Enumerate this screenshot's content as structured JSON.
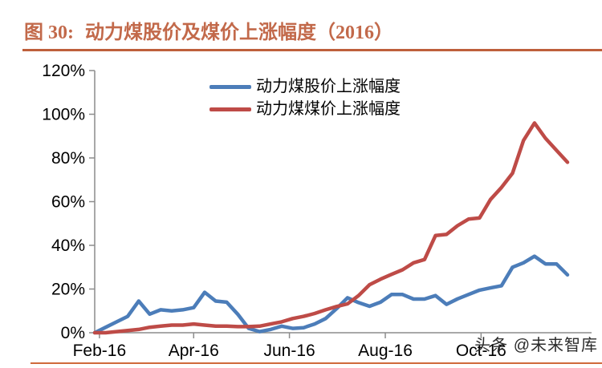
{
  "figure": {
    "label": "图 30:",
    "title": "动力煤股价及煤价上涨幅度（2016）"
  },
  "watermark": {
    "text": "头条 @未来智库"
  },
  "colors": {
    "title": "#C2694A",
    "title_rule": "#BE5F3B",
    "bottom_rule": "#D06A3C",
    "stock_line": "#4C7DB9",
    "coal_line": "#BE4B47",
    "axis": "#8C8C8C",
    "text": "#000000",
    "watermark": "#2B2B2B"
  },
  "chart_data": {
    "type": "line",
    "title": "动力煤股价及煤价上涨幅度（2016）",
    "unit": "percent",
    "grid": false,
    "legend_position": "top-center",
    "ylim": [
      0,
      120
    ],
    "ytick_labels": [
      "0%",
      "20%",
      "40%",
      "60%",
      "80%",
      "100%",
      "120%"
    ],
    "ytick_values": [
      0,
      20,
      40,
      60,
      80,
      100,
      120
    ],
    "xtick_labels": [
      "Feb-16",
      "Apr-16",
      "Jun-16",
      "Aug-16",
      "Oct-16"
    ],
    "x": [
      "Jan-29",
      "Feb-05",
      "Feb-12",
      "Feb-19",
      "Feb-26",
      "Mar-04",
      "Mar-11",
      "Mar-18",
      "Mar-25",
      "Apr-01",
      "Apr-08",
      "Apr-15",
      "Apr-22",
      "Apr-29",
      "May-06",
      "May-13",
      "May-20",
      "May-27",
      "Jun-03",
      "Jun-10",
      "Jun-17",
      "Jun-24",
      "Jul-01",
      "Jul-08",
      "Jul-15",
      "Jul-22",
      "Jul-29",
      "Aug-05",
      "Aug-12",
      "Aug-19",
      "Aug-26",
      "Sep-02",
      "Sep-09",
      "Sep-16",
      "Sep-23",
      "Sep-30",
      "Oct-07",
      "Oct-14",
      "Oct-21",
      "Oct-28",
      "Nov-04",
      "Nov-11",
      "Nov-18",
      "Nov-25"
    ],
    "series": [
      {
        "name": "动力煤股价上涨幅度",
        "color_key": "stock_line",
        "values": [
          0,
          2.5,
          5,
          7.5,
          14.5,
          8.5,
          10.5,
          10,
          10.5,
          11.5,
          18.5,
          14.5,
          14,
          8.5,
          2,
          0.5,
          1.5,
          3,
          2,
          2.3,
          4,
          6.5,
          11,
          16,
          13.8,
          12.1,
          14,
          17.5,
          17.5,
          15.4,
          15.4,
          17,
          13,
          15.5,
          17.5,
          19.5,
          20.5,
          21.5,
          30,
          32,
          35,
          31.5,
          31.5,
          26.5
        ]
      },
      {
        "name": "动力煤煤价上涨幅度",
        "color_key": "coal_line",
        "values": [
          0,
          0,
          0.5,
          1,
          1.5,
          2.5,
          3,
          3.5,
          3.5,
          4,
          3.5,
          3,
          3,
          2.8,
          2.8,
          3,
          4,
          5,
          6.5,
          7.5,
          8.8,
          10.5,
          12,
          13.2,
          17,
          22,
          24.5,
          26.7,
          28.8,
          32,
          33.5,
          44.5,
          45,
          49,
          52,
          52.5,
          61,
          66.5,
          73,
          88,
          96,
          89,
          83.5,
          78
        ]
      }
    ]
  }
}
